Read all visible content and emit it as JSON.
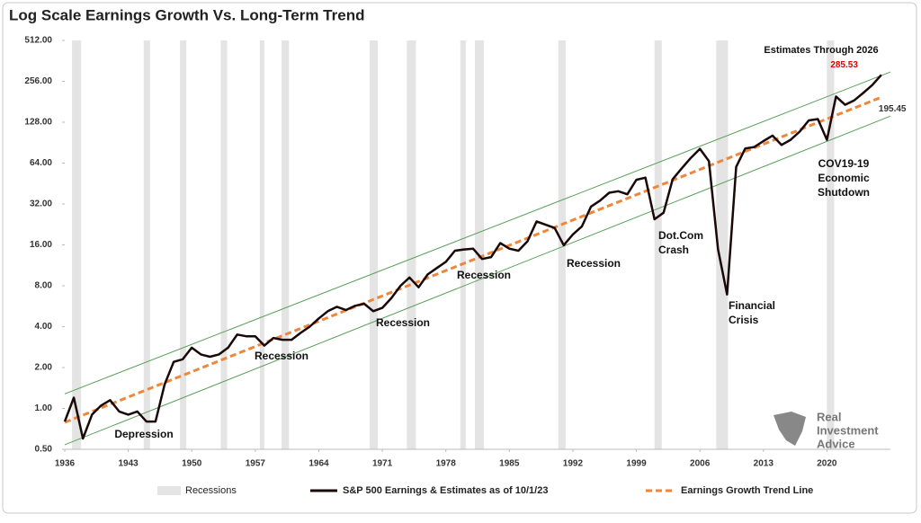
{
  "chart_data": {
    "type": "line",
    "title": "Log Scale Earnings Growth Vs. Long-Term Trend",
    "log_scale": true,
    "grid": false,
    "xlim": [
      1936,
      2027
    ],
    "xticks": [
      1936,
      1943,
      1950,
      1957,
      1964,
      1971,
      1978,
      1985,
      1992,
      1999,
      2006,
      2013,
      2020
    ],
    "ylim": [
      0.5,
      512
    ],
    "yticks": [
      {
        "value": 0.5,
        "label": "0.50"
      },
      {
        "value": 1,
        "label": "1.00"
      },
      {
        "value": 2,
        "label": "2.00"
      },
      {
        "value": 4,
        "label": "4.00"
      },
      {
        "value": 8,
        "label": "8.00"
      },
      {
        "value": 16,
        "label": "16.00"
      },
      {
        "value": 32,
        "label": "32.00"
      },
      {
        "value": 64,
        "label": "64.00"
      },
      {
        "value": 128,
        "label": "128.00"
      },
      {
        "value": 256,
        "label": "256.00"
      },
      {
        "value": 512,
        "label": "512.00"
      }
    ],
    "recessions": {
      "name": "Recessions",
      "color": "#e4e4e4",
      "periods": [
        [
          1936.8,
          1937.8
        ],
        [
          1944.7,
          1945.4
        ],
        [
          1948.7,
          1949.4
        ],
        [
          1953.2,
          1953.9
        ],
        [
          1957.5,
          1958.0
        ],
        [
          1959.9,
          1960.7
        ],
        [
          1969.6,
          1970.5
        ],
        [
          1973.7,
          1974.7
        ],
        [
          1979.6,
          1980.2
        ],
        [
          1981.2,
          1982.2
        ],
        [
          1990.4,
          1991.2
        ],
        [
          2001.0,
          2001.8
        ],
        [
          2007.8,
          2009.1
        ],
        [
          2020.0,
          2020.8
        ]
      ]
    },
    "series": [
      {
        "name": "S&P 500 Earnings & Estimates as of 10/1/23",
        "color": "#1a0808",
        "style": "solid",
        "x": [
          1936,
          1937,
          1938,
          1939,
          1940,
          1941,
          1942,
          1943,
          1944,
          1945,
          1946,
          1947,
          1948,
          1949,
          1950,
          1951,
          1952,
          1953,
          1954,
          1955,
          1956,
          1957,
          1958,
          1959,
          1960,
          1961,
          1962,
          1963,
          1964,
          1965,
          1966,
          1967,
          1968,
          1969,
          1970,
          1971,
          1972,
          1973,
          1974,
          1975,
          1976,
          1977,
          1978,
          1979,
          1980,
          1981,
          1982,
          1983,
          1984,
          1985,
          1986,
          1987,
          1988,
          1989,
          1990,
          1991,
          1992,
          1993,
          1994,
          1995,
          1996,
          1997,
          1998,
          1999,
          2000,
          2001,
          2002,
          2003,
          2004,
          2005,
          2006,
          2007,
          2008,
          2009,
          2010,
          2011,
          2012,
          2013,
          2014,
          2015,
          2016,
          2017,
          2018,
          2019,
          2020,
          2021,
          2022,
          2023,
          2024,
          2025,
          2026
        ],
        "values": [
          0.8,
          1.2,
          0.6,
          0.9,
          1.05,
          1.15,
          0.95,
          0.9,
          0.95,
          0.8,
          0.8,
          1.5,
          2.2,
          2.3,
          2.8,
          2.5,
          2.4,
          2.5,
          2.8,
          3.5,
          3.4,
          3.4,
          2.9,
          3.3,
          3.2,
          3.2,
          3.6,
          4.0,
          4.6,
          5.2,
          5.6,
          5.3,
          5.7,
          5.9,
          5.2,
          5.5,
          6.5,
          8.0,
          9.2,
          7.8,
          9.7,
          10.8,
          12.0,
          14.5,
          14.8,
          15.0,
          12.6,
          13.0,
          16.5,
          15.0,
          14.5,
          17.0,
          23.8,
          22.5,
          21.3,
          15.9,
          19.1,
          21.9,
          30.6,
          33.9,
          38.7,
          39.7,
          37.7,
          48.2,
          50.0,
          24.7,
          27.6,
          48.7,
          58.6,
          69.9,
          81.5,
          66.2,
          14.9,
          6.9,
          60,
          82,
          84,
          93,
          102,
          87,
          95,
          109,
          132,
          135,
          95,
          198,
          172,
          185,
          210,
          240,
          285.53
        ]
      },
      {
        "name": "Earnings Growth Trend Line",
        "color": "#f0863a",
        "style": "dashed",
        "x": [
          1936,
          2026
        ],
        "values": [
          0.79,
          195.45
        ]
      }
    ],
    "channel": {
      "color": "#5aa05a",
      "x": [
        1936,
        2027
      ],
      "upper": [
        1.28,
        300
      ],
      "lower": [
        0.54,
        142
      ]
    },
    "annotations": [
      [
        "Depression"
      ],
      [
        "Recession"
      ],
      [
        "Recession"
      ],
      [
        "Recession"
      ],
      [
        "Recession"
      ],
      [
        "Dot.Com",
        "Crash"
      ],
      [
        "Financial",
        "Crisis"
      ],
      [
        "COV19-19",
        "Economic",
        "Shutdown"
      ],
      [
        "Estimates Through 2026"
      ]
    ],
    "logo": [
      "Real",
      "Investment",
      "Advice"
    ]
  }
}
